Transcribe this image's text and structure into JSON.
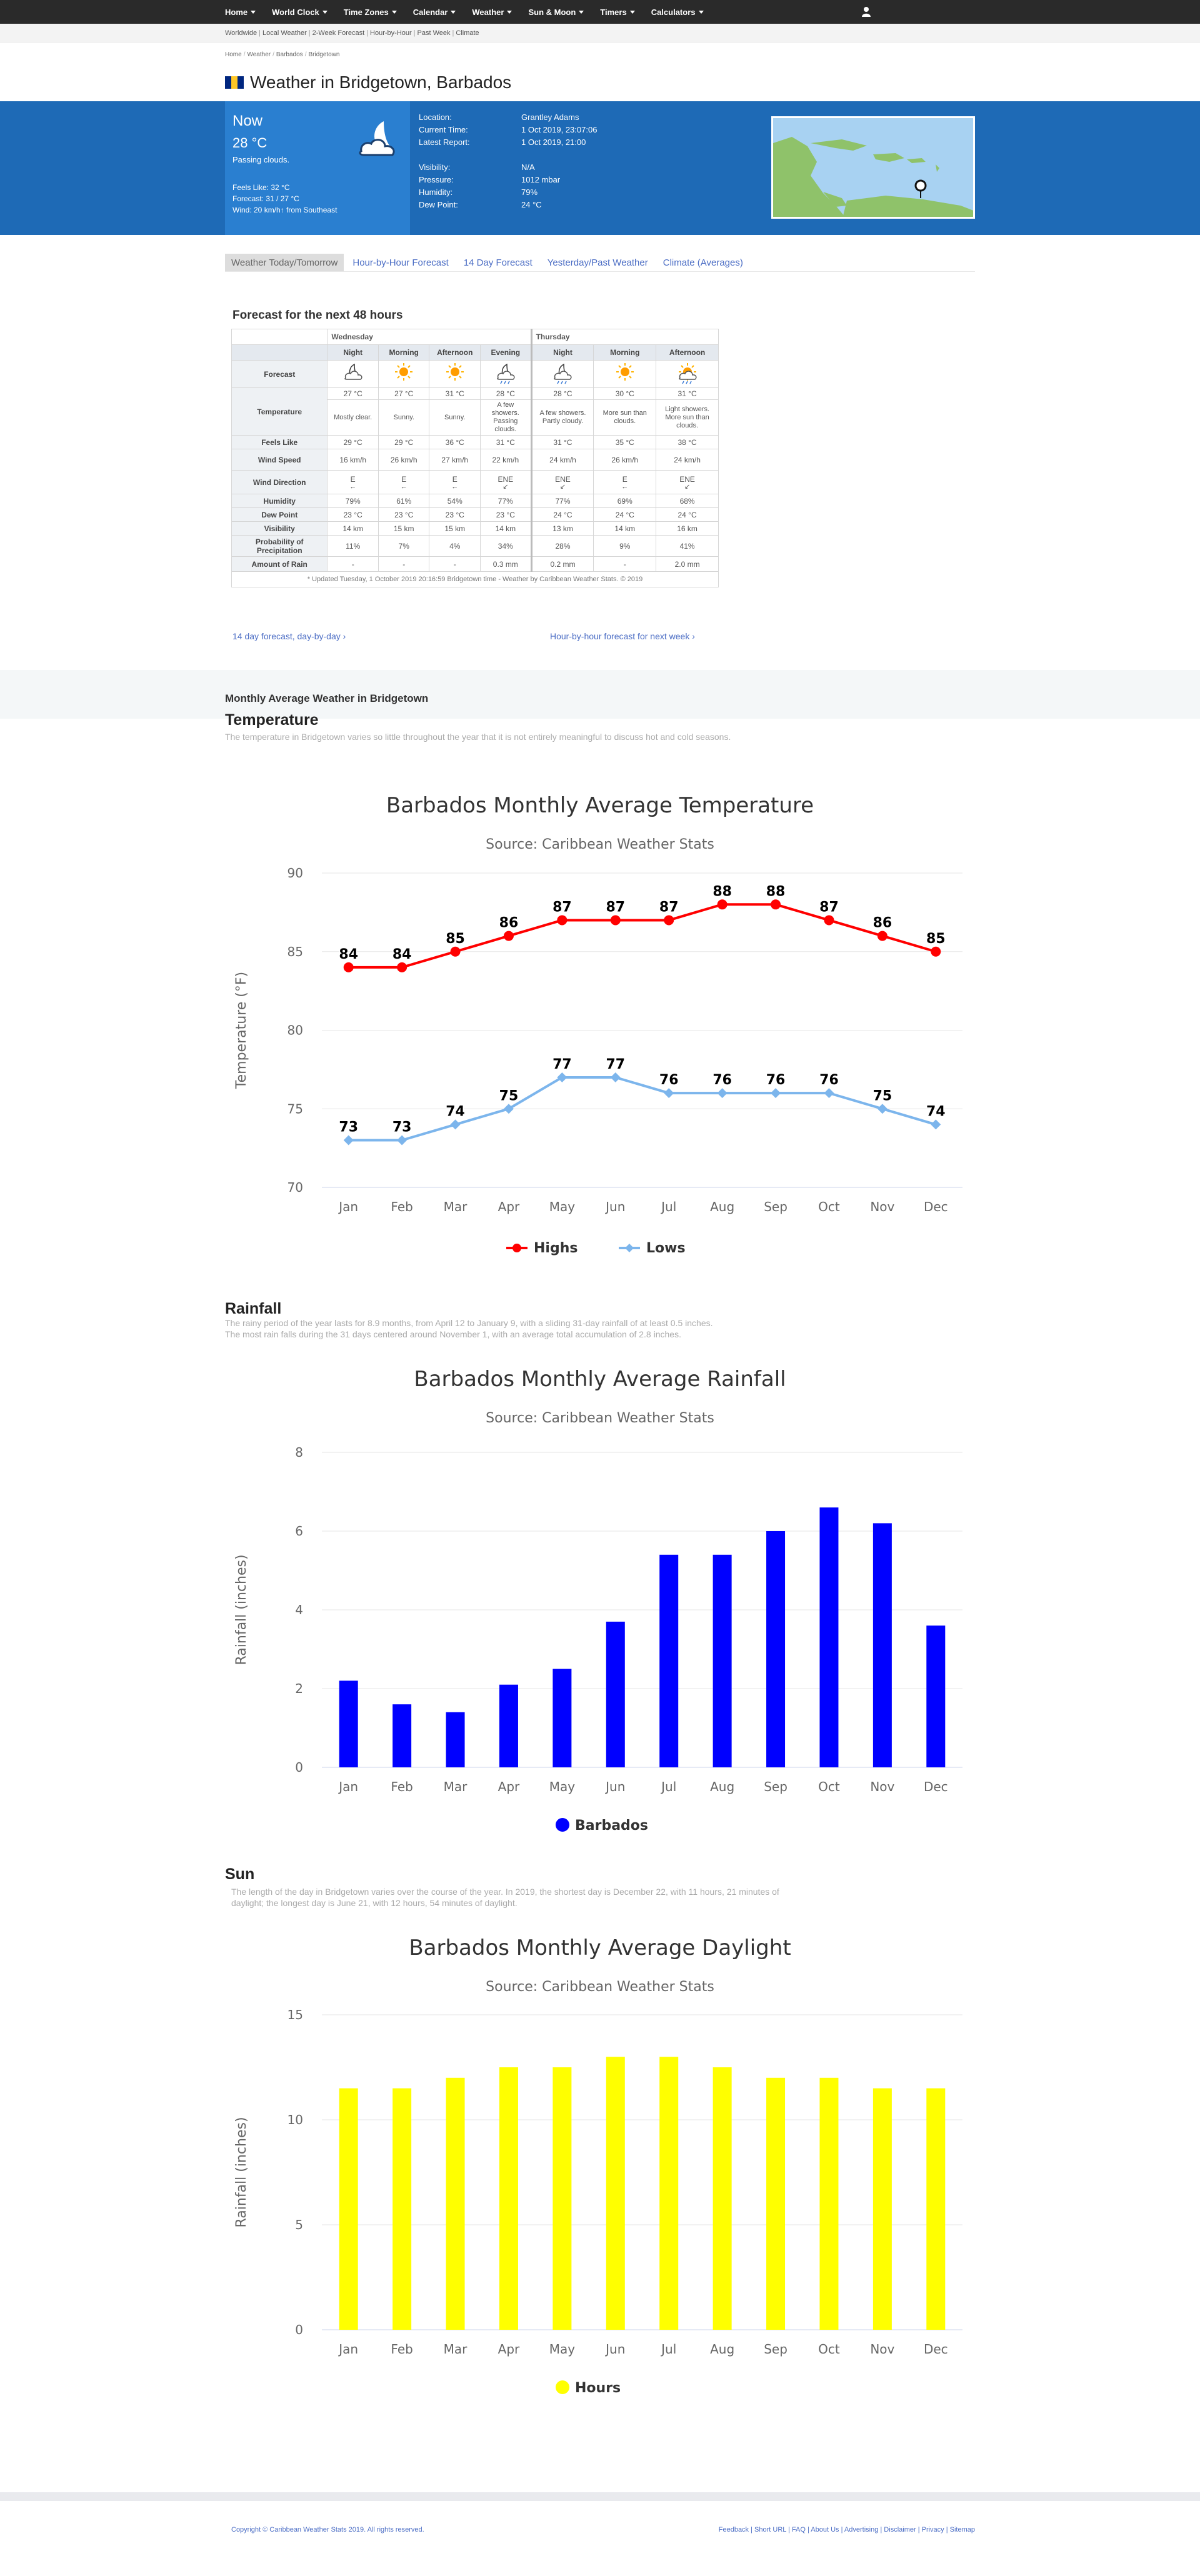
{
  "nav": [
    "Home",
    "World Clock",
    "Time Zones",
    "Calendar",
    "Weather",
    "Sun & Moon",
    "Timers",
    "Calculators"
  ],
  "subnav": [
    "Worldwide",
    "Local Weather",
    "2-Week Forecast",
    "Hour-by-Hour",
    "Past Week",
    "Climate"
  ],
  "breadcrumb": [
    "Home",
    "Weather",
    "Barbados",
    "Bridgetown"
  ],
  "page_title": "Weather in Bridgetown, Barbados",
  "now": {
    "label": "Now",
    "temp": "28 °C",
    "desc": "Passing clouds.",
    "feels": "Feels Like: 32 °C",
    "forecast": "Forecast: 31 / 27 °C",
    "wind": "Wind: 20 km/h↑ from Southeast"
  },
  "info": {
    "labels": [
      "Location:",
      "Current Time:",
      "Latest Report:",
      "",
      "Visibility:",
      "Pressure:",
      "Humidity:",
      "Dew Point:"
    ],
    "values": [
      "Grantley Adams",
      "1 Oct 2019, 23:07:06",
      "1 Oct 2019, 21:00",
      "",
      "N/A",
      "1012 mbar",
      "79%",
      "24 °C"
    ]
  },
  "tabs": [
    "Weather Today/Tomorrow",
    "Hour-by-Hour Forecast",
    "14 Day Forecast",
    "Yesterday/Past Weather",
    "Climate (Averages)"
  ],
  "forecast": {
    "title": "Forecast for the next 48 hours",
    "days": [
      "Wednesday",
      "Thursday"
    ],
    "periods": [
      "Night",
      "Morning",
      "Afternoon",
      "Evening",
      "Night",
      "Morning",
      "Afternoon"
    ],
    "row_labels": [
      "Forecast",
      "Temperature",
      "Feels Like",
      "Wind Speed",
      "Wind Direction",
      "Humidity",
      "Dew Point",
      "Visibility",
      "Probability of Precipitation",
      "Amount of Rain"
    ],
    "temperature": [
      "27 °C",
      "27 °C",
      "31 °C",
      "28 °C",
      "28 °C",
      "30 °C",
      "31 °C"
    ],
    "descriptions": [
      "Mostly clear.",
      "Sunny.",
      "Sunny.",
      "A few showers. Passing clouds.",
      "A few showers. Partly cloudy.",
      "More sun than clouds.",
      "Light showers. More sun than clouds."
    ],
    "feels_like": [
      "29 °C",
      "29 °C",
      "36 °C",
      "31 °C",
      "31 °C",
      "35 °C",
      "38 °C"
    ],
    "wind_speed": [
      "16 km/h",
      "26 km/h",
      "27 km/h",
      "22 km/h",
      "24 km/h",
      "26 km/h",
      "24 km/h"
    ],
    "wind_dir": [
      "E",
      "E",
      "E",
      "ENE",
      "ENE",
      "E",
      "ENE"
    ],
    "humidity": [
      "79%",
      "61%",
      "54%",
      "77%",
      "77%",
      "69%",
      "68%"
    ],
    "dew_point": [
      "23 °C",
      "23 °C",
      "23 °C",
      "23 °C",
      "24 °C",
      "24 °C",
      "24 °C"
    ],
    "visibility": [
      "14 km",
      "15 km",
      "15 km",
      "14 km",
      "13 km",
      "14 km",
      "16 km"
    ],
    "precip_prob": [
      "11%",
      "7%",
      "4%",
      "34%",
      "28%",
      "9%",
      "41%"
    ],
    "rain": [
      "-",
      "-",
      "-",
      "0.3 mm",
      "0.2 mm",
      "-",
      "2.0 mm"
    ],
    "icons": [
      "moon-cloud-icon",
      "sun-icon",
      "sun-icon",
      "shower-icon",
      "shower-icon",
      "sun-icon",
      "sun-cloud-rain-icon"
    ],
    "note": "* Updated Tuesday, 1 October 2019 20:16:59 Bridgetown time - Weather by Caribbean Weather Stats. © 2019",
    "link_left": "14 day forecast, day-by-day",
    "link_right": "Hour-by-hour forecast for next week"
  },
  "sections": {
    "monthly_title": "Monthly Average Weather in Bridgetown",
    "temperature": "Temperature",
    "temperature_text": "The temperature in Bridgetown varies so little throughout the year that it is not entirely meaningful to discuss hot and cold seasons.",
    "rainfall": "Rainfall",
    "rainfall_text_1": "The rainy period of the year lasts for 8.9 months, from April 12 to January 9, with a sliding 31-day rainfall of at least 0.5 inches.",
    "rainfall_text_2": "The most rain falls during the 31 days centered around November 1, with an average total accumulation of 2.8 inches.",
    "sun": "Sun",
    "sun_text": "The length of the day in Bridgetown varies over the course of the year. In 2019, the shortest day is December 22, with 11 hours, 21 minutes of daylight; the longest day is June 21, with 12 hours, 54 minutes of daylight."
  },
  "chart_data": [
    {
      "type": "line",
      "title": "Barbados Monthly Average Temperature",
      "subtitle": "Source: Caribbean Weather Stats",
      "ylabel": "Temperature (°F)",
      "categories": [
        "Jan",
        "Feb",
        "Mar",
        "Apr",
        "May",
        "Jun",
        "Jul",
        "Aug",
        "Sep",
        "Oct",
        "Nov",
        "Dec"
      ],
      "ylim": [
        70,
        90
      ],
      "yticks": [
        70,
        75,
        80,
        85,
        90
      ],
      "series": [
        {
          "name": "Highs",
          "color": "#ff0000",
          "values": [
            84,
            84,
            85,
            86,
            87,
            87,
            87,
            88,
            88,
            87,
            86,
            85
          ]
        },
        {
          "name": "Lows",
          "color": "#7cb5ec",
          "values": [
            73,
            73,
            74,
            75,
            77,
            77,
            76,
            76,
            76,
            76,
            75,
            74
          ]
        }
      ],
      "legend": "bottom-center"
    },
    {
      "type": "bar",
      "title": "Barbados Monthly Average Rainfall",
      "subtitle": "Source: Caribbean Weather Stats",
      "ylabel": "Rainfall (inches)",
      "categories": [
        "Jan",
        "Feb",
        "Mar",
        "Apr",
        "May",
        "Jun",
        "Jul",
        "Aug",
        "Sep",
        "Oct",
        "Nov",
        "Dec"
      ],
      "ylim": [
        0,
        8
      ],
      "yticks": [
        0,
        2,
        4,
        6,
        8
      ],
      "series": [
        {
          "name": "Barbados",
          "color": "#0000ff",
          "values": [
            2.2,
            1.6,
            1.4,
            2.1,
            2.5,
            3.7,
            5.4,
            5.4,
            6.0,
            6.6,
            6.2,
            3.6
          ]
        }
      ],
      "legend": "bottom-center"
    },
    {
      "type": "bar",
      "title": "Barbados Monthly Average Daylight",
      "subtitle": "Source: Caribbean Weather Stats",
      "ylabel": "Rainfall (inches)",
      "categories": [
        "Jan",
        "Feb",
        "Mar",
        "Apr",
        "May",
        "Jun",
        "Jul",
        "Aug",
        "Sep",
        "Oct",
        "Nov",
        "Dec"
      ],
      "ylim": [
        0,
        15
      ],
      "yticks": [
        0,
        5,
        10,
        15
      ],
      "series": [
        {
          "name": "Hours",
          "color": "#ffff00",
          "values": [
            11.5,
            11.5,
            12.0,
            12.5,
            12.5,
            13.0,
            13.0,
            12.5,
            12.0,
            12.0,
            11.5,
            11.5
          ]
        }
      ],
      "legend": "bottom-center"
    }
  ],
  "footer": {
    "copyright": "Copyright © Caribbean Weather Stats 2019. All rights reserved.",
    "links": "Feedback | Short URL | FAQ | About Us | Advertising | Disclaimer | Privacy | Sitemap"
  }
}
